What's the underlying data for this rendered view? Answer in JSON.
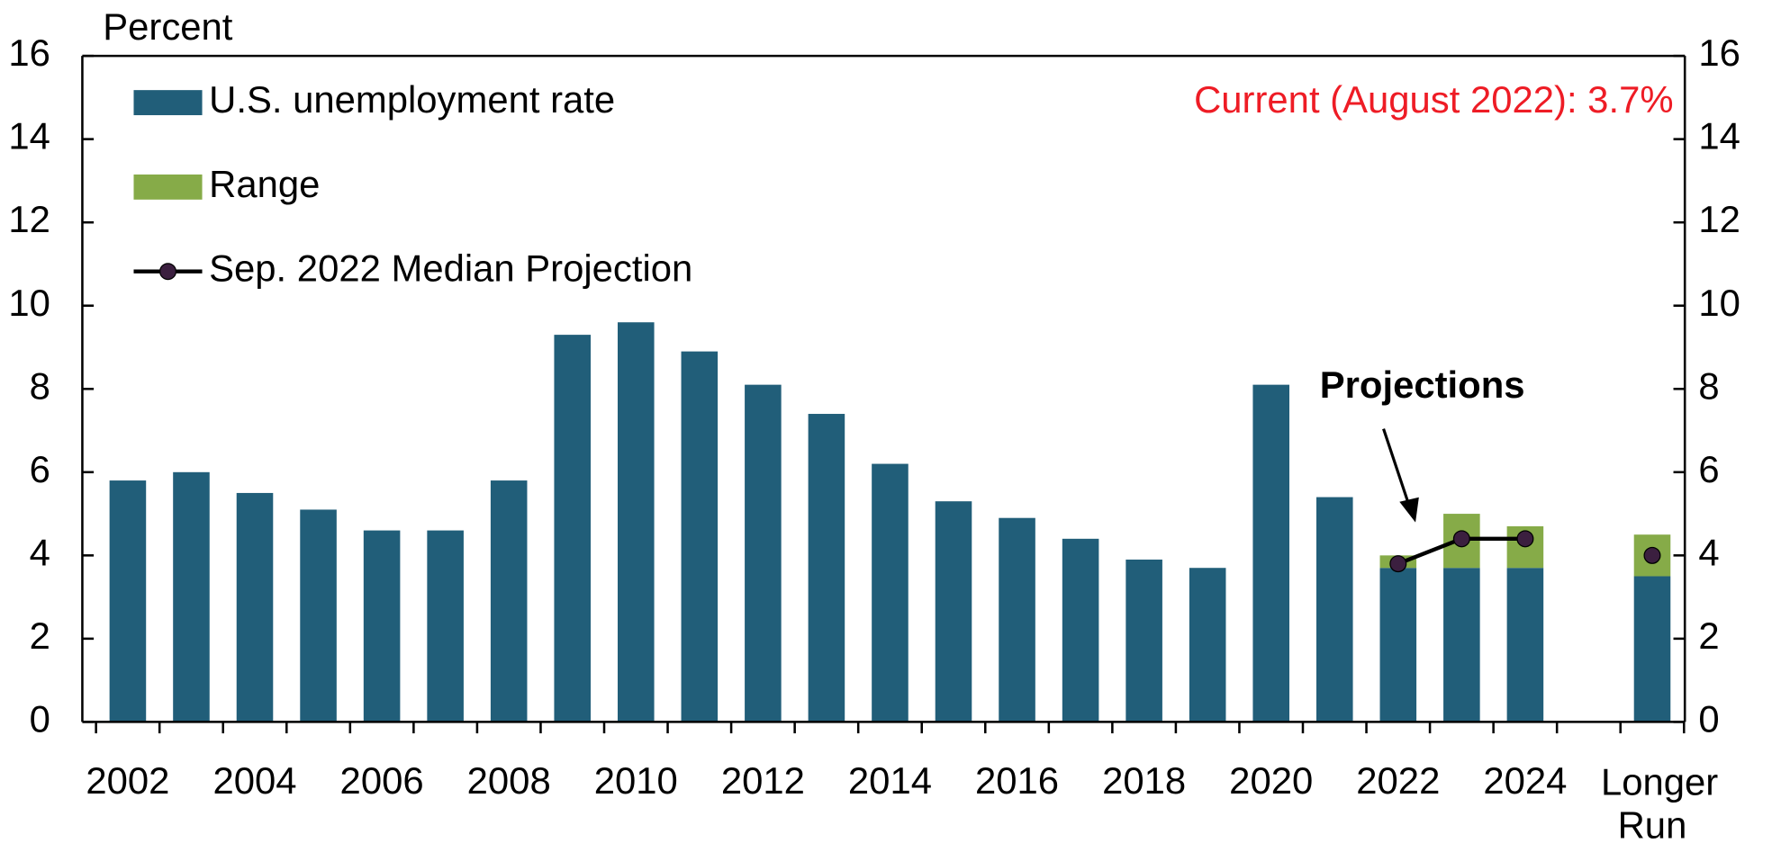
{
  "chart_data": {
    "type": "bar",
    "stacked": true,
    "y_axis_label": "Percent",
    "annotations": [
      "Current (August 2022): 3.7%",
      "Projections"
    ],
    "categories": [
      "2002",
      null,
      "2004",
      null,
      "2006",
      null,
      "2008",
      null,
      "2010",
      null,
      "2012",
      null,
      "2014",
      null,
      "2016",
      null,
      "2018",
      null,
      "2020",
      null,
      "2022",
      null,
      "2024",
      null,
      "Longer Run"
    ],
    "series": [
      {
        "name": "U.S. unemployment rate",
        "color": "#215e79",
        "values": [
          5.8,
          6.0,
          5.5,
          5.1,
          4.6,
          4.6,
          5.8,
          9.3,
          9.6,
          8.9,
          8.1,
          7.4,
          6.2,
          5.3,
          4.9,
          4.4,
          3.9,
          3.7,
          8.1,
          5.4,
          3.7,
          3.7,
          3.7,
          null,
          3.5
        ]
      },
      {
        "name": "Range",
        "color": "#86ab48",
        "values": [
          null,
          null,
          null,
          null,
          null,
          null,
          null,
          null,
          null,
          null,
          null,
          null,
          null,
          null,
          null,
          null,
          null,
          null,
          null,
          null,
          0.3,
          1.3,
          1.0,
          null,
          1.0
        ]
      },
      {
        "name": "Sep. 2022 Median Projection",
        "color": "#000000",
        "marker_color": "#3b1f3f",
        "kind": "line",
        "values": [
          null,
          null,
          null,
          null,
          null,
          null,
          null,
          null,
          null,
          null,
          null,
          null,
          null,
          null,
          null,
          null,
          null,
          null,
          null,
          null,
          3.8,
          4.4,
          4.4,
          null,
          4.0
        ]
      }
    ],
    "ylim": [
      0,
      16
    ],
    "yticks": [
      0,
      2,
      4,
      6,
      8,
      10,
      12,
      14,
      16
    ],
    "y2lim": [
      0,
      16
    ],
    "y2ticks": [
      0,
      2,
      4,
      6,
      8,
      10,
      12,
      14,
      16
    ],
    "legend": "upper left",
    "grid": false
  }
}
